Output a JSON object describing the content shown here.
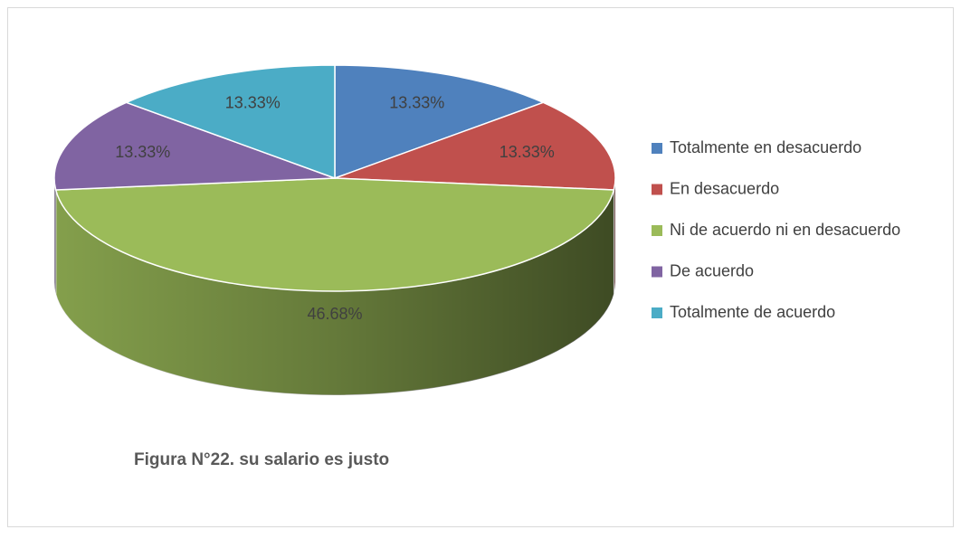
{
  "chart_data": {
    "type": "pie3d",
    "title": "Figura N°22. su salario es justo",
    "categories": [
      "Totalmente en desacuerdo",
      "En desacuerdo",
      "Ni de acuerdo ni en desacuerdo",
      "De acuerdo",
      "Totalmente de acuerdo"
    ],
    "values": [
      13.33,
      13.33,
      46.68,
      13.33,
      13.33
    ],
    "value_labels": [
      "13.33%",
      "13.33%",
      "46.68%",
      "13.33%",
      "13.33%"
    ],
    "colors": [
      "#4f81bd",
      "#c0504d",
      "#9bbb59",
      "#8064a2",
      "#4bacc6"
    ],
    "legend": "right"
  }
}
